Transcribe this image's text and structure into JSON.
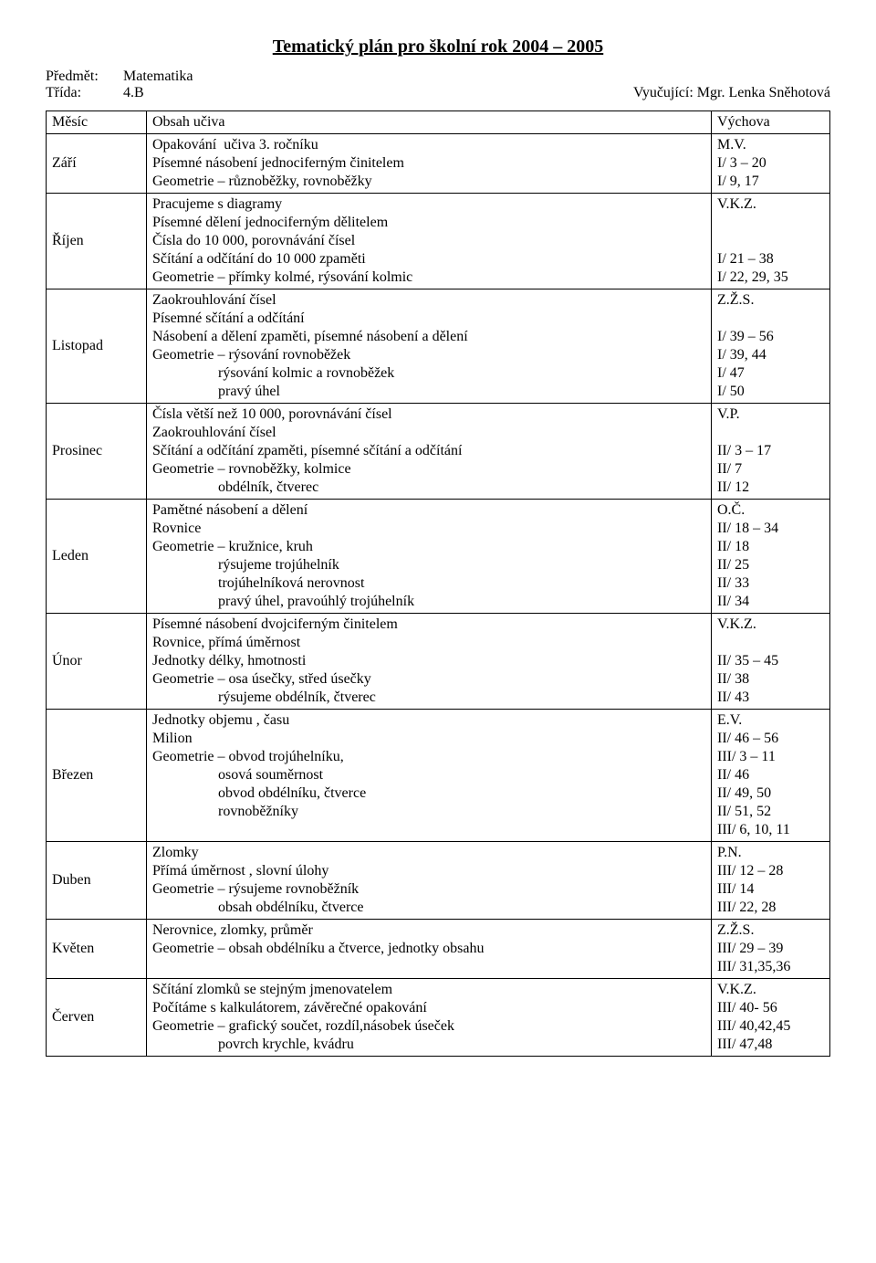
{
  "title": "Tematický plán pro školní rok 2004 – 2005",
  "header": {
    "subject_label": "Předmět:",
    "subject_value": "Matematika",
    "class_label": "Třída:",
    "class_value": "4.B",
    "teacher_label": "Vyučující:",
    "teacher_value": "Mgr. Lenka Sněhotová"
  },
  "table": {
    "columns": {
      "month": "Měsíc",
      "content": "Obsah učiva",
      "vychova": "Výchova"
    },
    "rows": [
      {
        "month": "Září",
        "content": [
          "Opakování  učiva 3. ročníku",
          "Písemné násobení jednociferným činitelem",
          "Geometrie – různoběžky, rovnoběžky"
        ],
        "vychova": [
          "M.V.",
          "I/ 3 – 20",
          "I/ 9, 17"
        ]
      },
      {
        "month": "Říjen",
        "content": [
          "Pracujeme s diagramy",
          "Písemné dělení jednociferným dělitelem",
          "Čísla do 10 000, porovnávání čísel",
          "Sčítání a odčítání do 10 000 zpaměti",
          "Geometrie – přímky kolmé, rýsování kolmic"
        ],
        "vychova": [
          "V.K.Z.",
          "",
          "",
          "I/ 21 – 38",
          "I/ 22, 29, 35"
        ]
      },
      {
        "month": "Listopad",
        "content": [
          "Zaokrouhlování čísel",
          "Písemné sčítání a odčítání",
          "Násobení a dělení zpaměti, písemné násobení a dělení",
          "Geometrie – rýsování rovnoběžek",
          "                  rýsování kolmic a rovnoběžek",
          "                  pravý úhel"
        ],
        "vychova": [
          "Z.Ž.S.",
          "",
          "I/ 39 – 56",
          "I/ 39, 44",
          "I/ 47",
          "I/ 50"
        ]
      },
      {
        "month": "Prosinec",
        "content": [
          "Čísla větší než 10 000, porovnávání čísel",
          "Zaokrouhlování čísel",
          "Sčítání a odčítání zpaměti, písemné sčítání a odčítání",
          "Geometrie – rovnoběžky, kolmice",
          "                  obdélník, čtverec"
        ],
        "vychova": [
          "V.P.",
          "",
          "II/ 3 – 17",
          "II/ 7",
          "II/ 12"
        ]
      },
      {
        "month": "Leden",
        "content": [
          "Pamětné násobení a dělení",
          "Rovnice",
          "Geometrie – kružnice, kruh",
          "                  rýsujeme trojúhelník",
          "                  trojúhelníková nerovnost",
          "                  pravý úhel, pravoúhlý trojúhelník"
        ],
        "vychova": [
          "O.Č.",
          "II/ 18 – 34",
          "II/ 18",
          "II/ 25",
          "II/ 33",
          "II/ 34"
        ]
      },
      {
        "month": "Únor",
        "content": [
          "Písemné násobení dvojciferným činitelem",
          "Rovnice, přímá úměrnost",
          "Jednotky délky, hmotnosti",
          "Geometrie – osa úsečky, střed úsečky",
          "                  rýsujeme obdélník, čtverec"
        ],
        "vychova": [
          "V.K.Z.",
          "",
          "II/ 35 – 45",
          "II/ 38",
          "II/ 43"
        ]
      },
      {
        "month": "Březen",
        "content": [
          "Jednotky objemu , času",
          "Milion",
          "Geometrie – obvod trojúhelníku,",
          "                  osová souměrnost",
          "                  obvod obdélníku, čtverce",
          "                  rovnoběžníky",
          ""
        ],
        "vychova": [
          "E.V.",
          "II/ 46 – 56",
          "III/ 3 – 11",
          "II/ 46",
          "II/ 49, 50",
          "II/ 51, 52",
          "III/ 6, 10, 11"
        ]
      },
      {
        "month": "Duben",
        "content": [
          "Zlomky",
          "Přímá úměrnost , slovní úlohy",
          "Geometrie – rýsujeme rovnoběžník",
          "                  obsah obdélníku, čtverce"
        ],
        "vychova": [
          "P.N.",
          "III/ 12 – 28",
          "III/ 14",
          "III/ 22, 28"
        ]
      },
      {
        "month": "Květen",
        "content": [
          "Nerovnice, zlomky, průměr",
          "Geometrie – obsah obdélníku a čtverce, jednotky obsahu",
          ""
        ],
        "vychova": [
          "Z.Ž.S.",
          "III/ 29 – 39",
          "III/ 31,35,36"
        ]
      },
      {
        "month": "Červen",
        "content": [
          "Sčítání zlomků se stejným jmenovatelem",
          "Počítáme s kalkulátorem, závěrečné opakování",
          "Geometrie – grafický součet, rozdíl,násobek úseček",
          "                  povrch krychle, kvádru"
        ],
        "vychova": [
          "V.K.Z.",
          "III/ 40- 56",
          "III/ 40,42,45",
          "III/ 47,48"
        ]
      }
    ]
  }
}
